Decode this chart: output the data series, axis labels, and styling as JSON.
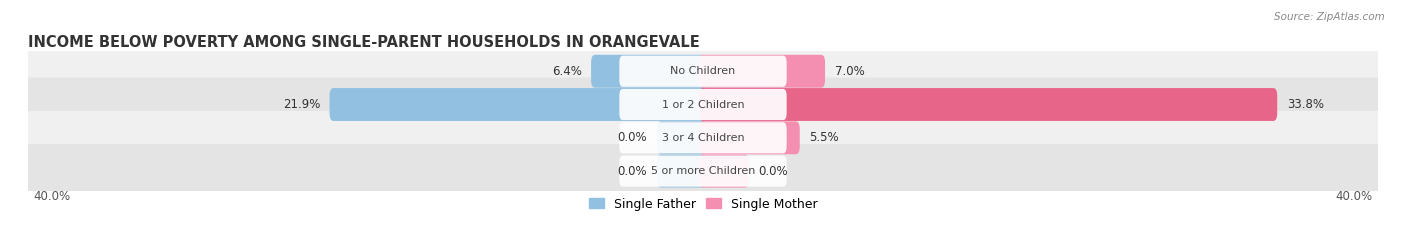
{
  "title": "INCOME BELOW POVERTY AMONG SINGLE-PARENT HOUSEHOLDS IN ORANGEVALE",
  "source": "Source: ZipAtlas.com",
  "categories": [
    "No Children",
    "1 or 2 Children",
    "3 or 4 Children",
    "5 or more Children"
  ],
  "single_father": [
    6.4,
    21.9,
    0.0,
    0.0
  ],
  "single_mother": [
    7.0,
    33.8,
    5.5,
    0.0
  ],
  "father_color": "#92c0e0",
  "mother_color": "#f48fb1",
  "mother_color_dark": "#e8658a",
  "row_bg_light": "#f0f0f0",
  "row_bg_dark": "#e4e4e4",
  "fig_bg": "#ffffff",
  "max_val": 40.0,
  "min_stub": 2.5,
  "title_fontsize": 10.5,
  "bar_height": 0.52,
  "legend_labels": [
    "Single Father",
    "Single Mother"
  ]
}
